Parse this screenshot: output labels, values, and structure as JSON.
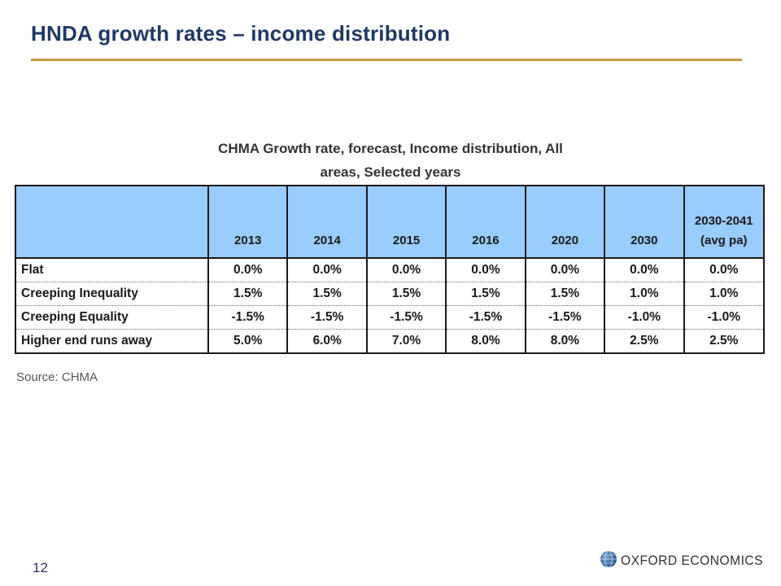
{
  "slide": {
    "title": "HNDA growth rates – income distribution",
    "page_number": "12",
    "source": "Source: CHMA",
    "logo_text": "OXFORD ECONOMICS",
    "accent_color": "#c89a3c",
    "title_color": "#1f3864",
    "header_fill": "#99ccff"
  },
  "table": {
    "caption_line1": "CHMA Growth rate, forecast, Income distribution, All",
    "caption_line2": "areas, Selected years",
    "columns": [
      "2013",
      "2014",
      "2015",
      "2016",
      "2020",
      "2030",
      "2030-2041",
      "(avg pa)"
    ],
    "rows": [
      {
        "label": "Flat",
        "values": [
          "0.0%",
          "0.0%",
          "0.0%",
          "0.0%",
          "0.0%",
          "0.0%",
          "0.0%"
        ]
      },
      {
        "label": "Creeping Inequality",
        "values": [
          "1.5%",
          "1.5%",
          "1.5%",
          "1.5%",
          "1.5%",
          "1.0%",
          "1.0%"
        ]
      },
      {
        "label": "Creeping Equality",
        "values": [
          "-1.5%",
          "-1.5%",
          "-1.5%",
          "-1.5%",
          "-1.5%",
          "-1.0%",
          "-1.0%"
        ]
      },
      {
        "label": "Higher end runs away",
        "values": [
          "5.0%",
          "6.0%",
          "7.0%",
          "8.0%",
          "8.0%",
          "2.5%",
          "2.5%"
        ]
      }
    ]
  }
}
